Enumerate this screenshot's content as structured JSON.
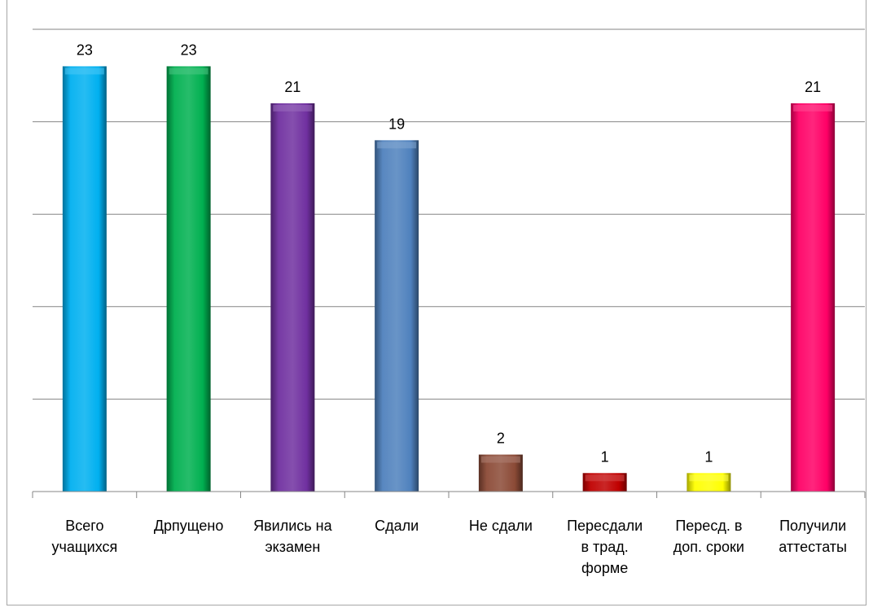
{
  "chart_data": {
    "type": "bar",
    "title": "",
    "xlabel": "",
    "ylabel": "",
    "categories": [
      [
        "Всего",
        "учащихся"
      ],
      [
        "Дрпущено"
      ],
      [
        "Явились на",
        "экзамен"
      ],
      [
        "Сдали"
      ],
      [
        "Не сдали"
      ],
      [
        "Пересдали",
        "в трад.",
        "форме"
      ],
      [
        "Пересд. в",
        "доп. сроки"
      ],
      [
        "Получили",
        "аттестаты"
      ]
    ],
    "values": [
      23,
      23,
      21,
      19,
      2,
      1,
      1,
      21
    ],
    "colors": [
      "#00b0f0",
      "#00b050",
      "#7030a0",
      "#4f81bd",
      "#8b4a36",
      "#c00000",
      "#ffff00",
      "#ff0066"
    ],
    "ylim": [
      0,
      25
    ],
    "grid": true,
    "legend": "none"
  }
}
